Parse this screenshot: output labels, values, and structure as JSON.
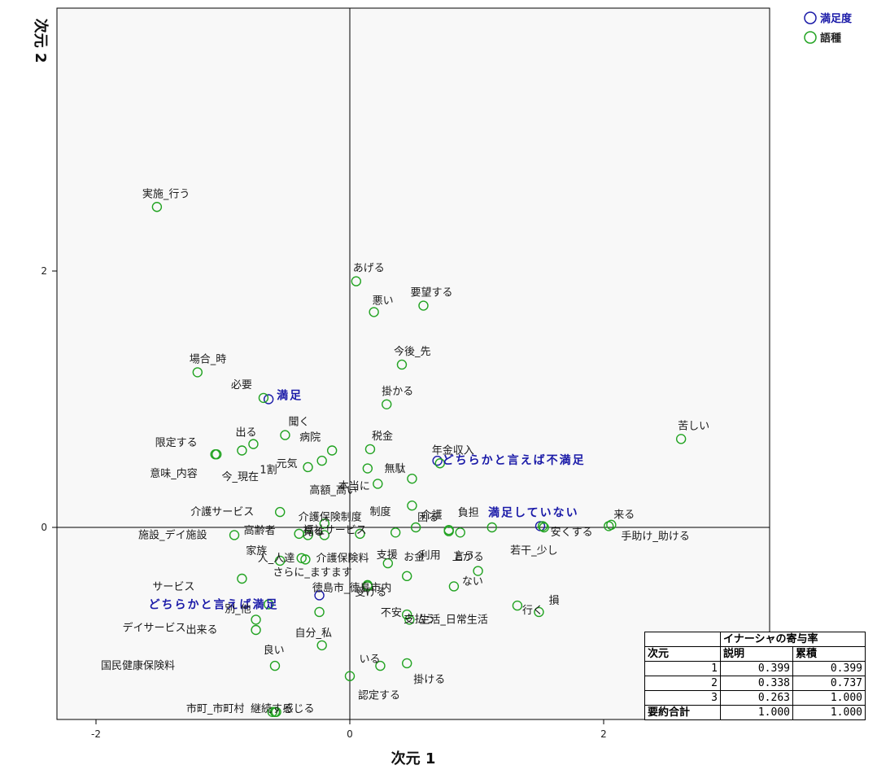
{
  "chart_data": {
    "type": "scatter",
    "xlabel": "次元 1",
    "ylabel": "次元 2",
    "xlim": [
      -2.5,
      3.3
    ],
    "ylim": [
      -1.85,
      4.0
    ],
    "xticks": [
      "-2",
      "0",
      "2"
    ],
    "xtick_values": [
      -2,
      0,
      2
    ],
    "yticks": [
      "0",
      "2"
    ],
    "ytick_values": [
      0,
      2
    ],
    "legend": {
      "placement": "top-right",
      "entries": [
        {
          "label": "満足度",
          "color": "#1a1aa8"
        },
        {
          "label": "語種",
          "color": "#22a322"
        }
      ]
    },
    "series": [
      {
        "name": "満足度",
        "color": "#1a1aa8",
        "points": [
          {
            "label": "満足",
            "x": -0.64,
            "y": 1.0
          },
          {
            "label": "どちらかと言えば不満足",
            "x": 0.69,
            "y": 0.52
          },
          {
            "label": "満足していない",
            "x": 1.5,
            "y": 0.01
          },
          {
            "label": "どちらかと言えば満足",
            "x": -0.24,
            "y": -0.53
          }
        ]
      },
      {
        "name": "語種",
        "color": "#22a322",
        "points": [
          {
            "label": "実施_行う",
            "x": -1.52,
            "y": 2.5
          },
          {
            "label": "あげる",
            "x": 0.05,
            "y": 1.92
          },
          {
            "label": "悪い",
            "x": 0.19,
            "y": 1.68
          },
          {
            "label": "要望する",
            "x": 0.58,
            "y": 1.73
          },
          {
            "label": "今後_先",
            "x": 0.41,
            "y": 1.27
          },
          {
            "label": "場合_時",
            "x": -1.2,
            "y": 1.21
          },
          {
            "label": "必要",
            "x": -0.68,
            "y": 1.01
          },
          {
            "label": "掛かる",
            "x": 0.29,
            "y": 0.96
          },
          {
            "label": "苦しい",
            "x": 2.61,
            "y": 0.69
          },
          {
            "label": "聞く",
            "x": -0.51,
            "y": 0.72
          },
          {
            "label": "病院",
            "x": -0.14,
            "y": 0.6
          },
          {
            "label": "税金",
            "x": 0.16,
            "y": 0.61
          },
          {
            "label": "限定する",
            "x": -1.06,
            "y": 0.57
          },
          {
            "label": "出る",
            "x": -0.76,
            "y": 0.65
          },
          {
            "label": "年金収入",
            "x": 0.71,
            "y": 0.5
          },
          {
            "label": "意味_内容",
            "x": -1.05,
            "y": 0.57
          },
          {
            "label": "1割",
            "x": -0.85,
            "y": 0.6
          },
          {
            "label": "元気",
            "x": -0.22,
            "y": 0.52
          },
          {
            "label": "今_現在",
            "x": -0.33,
            "y": 0.47
          },
          {
            "label": "本当に",
            "x": 0.14,
            "y": 0.46
          },
          {
            "label": "無駄",
            "x": 0.49,
            "y": 0.38
          },
          {
            "label": "高額_高い",
            "x": 0.22,
            "y": 0.34
          },
          {
            "label": "制度",
            "x": 0.49,
            "y": 0.17
          },
          {
            "label": "困る",
            "x": 0.52,
            "y": 0.0
          },
          {
            "label": "負担",
            "x": 1.12,
            "y": 0.0
          },
          {
            "label": "介護サービス",
            "x": -0.55,
            "y": 0.12
          },
          {
            "label": "介護保険制度",
            "x": -0.2,
            "y": 0.03
          },
          {
            "label": "見る",
            "x": -0.33,
            "y": -0.06
          },
          {
            "label": "福祉サービス",
            "x": -0.2,
            "y": -0.06
          },
          {
            "label": "介護",
            "x": 0.78,
            "y": -0.02
          },
          {
            "label": "来る",
            "x": 2.04,
            "y": 0.01
          },
          {
            "label": "安くする",
            "x": 1.53,
            "y": 0.0
          },
          {
            "label": "手助け_助ける",
            "x": 2.06,
            "y": 0.02
          },
          {
            "label": "施設_デイ施設",
            "x": -0.91,
            "y": -0.06
          },
          {
            "label": "高齢者",
            "x": -0.4,
            "y": -0.05
          },
          {
            "label": "人_人達",
            "x": -0.38,
            "y": -0.24
          },
          {
            "label": "介護保険料",
            "x": 0.08,
            "y": -0.05
          },
          {
            "label": "お金",
            "x": 0.36,
            "y": -0.04
          },
          {
            "label": "利用",
            "x": 0.78,
            "y": -0.03
          },
          {
            "label": "上がる",
            "x": 0.87,
            "y": -0.04
          },
          {
            "label": "若干_少し",
            "x": 1.52,
            "y": 0.01
          },
          {
            "label": "サービス",
            "x": -0.85,
            "y": -0.4
          },
          {
            "label": "家族",
            "x": -0.55,
            "y": -0.26
          },
          {
            "label": "さらに_ますます",
            "x": -0.35,
            "y": -0.25
          },
          {
            "label": "支援",
            "x": 0.3,
            "y": -0.28
          },
          {
            "label": "受ける",
            "x": 0.45,
            "y": -0.38
          },
          {
            "label": "言う",
            "x": 1.01,
            "y": -0.34
          },
          {
            "label": "別_他",
            "x": -0.64,
            "y": -0.6
          },
          {
            "label": "自分_私",
            "x": -0.24,
            "y": -0.66
          },
          {
            "label": "不安",
            "x": 0.14,
            "y": -0.45
          },
          {
            "label": "支払う",
            "x": 0.45,
            "y": -0.68
          },
          {
            "label": "ない",
            "x": 0.82,
            "y": -0.46
          },
          {
            "label": "行く",
            "x": 1.32,
            "y": -0.61
          },
          {
            "label": "損",
            "x": 1.49,
            "y": -0.66
          },
          {
            "label": "デイサービス",
            "x": -0.74,
            "y": -0.72
          },
          {
            "label": "出来る",
            "x": -0.74,
            "y": -0.8
          },
          {
            "label": "良い",
            "x": -0.22,
            "y": -0.92
          },
          {
            "label": "徳島市_徳島市内",
            "x": 0.14,
            "y": -0.46
          },
          {
            "label": "生活_日常生活",
            "x": 0.47,
            "y": -0.72
          },
          {
            "label": "国民健康保険料",
            "x": -0.59,
            "y": -1.08
          },
          {
            "label": "いる",
            "x": 0.24,
            "y": -1.08
          },
          {
            "label": "掛ける",
            "x": 0.45,
            "y": -1.06
          },
          {
            "label": "継続する",
            "x": -0.59,
            "y": -1.44
          },
          {
            "label": "認定する",
            "x": 0.0,
            "y": -1.16
          },
          {
            "label": "市町_市町村",
            "x": -0.61,
            "y": -1.44
          },
          {
            "label": "感じる",
            "x": -0.58,
            "y": -1.44
          }
        ]
      }
    ]
  },
  "inertia_table": {
    "title": "イナーシャの寄与率",
    "col_dim": "次元",
    "col_explain": "説明",
    "col_cumulative": "累積",
    "rows": [
      {
        "dim": "1",
        "explain": "0.399",
        "cumulative": "0.399"
      },
      {
        "dim": "2",
        "explain": "0.338",
        "cumulative": "0.737"
      },
      {
        "dim": "3",
        "explain": "0.263",
        "cumulative": "1.000"
      }
    ],
    "total_label": "要約合計",
    "total_explain": "1.000",
    "total_cumulative": "1.000"
  }
}
